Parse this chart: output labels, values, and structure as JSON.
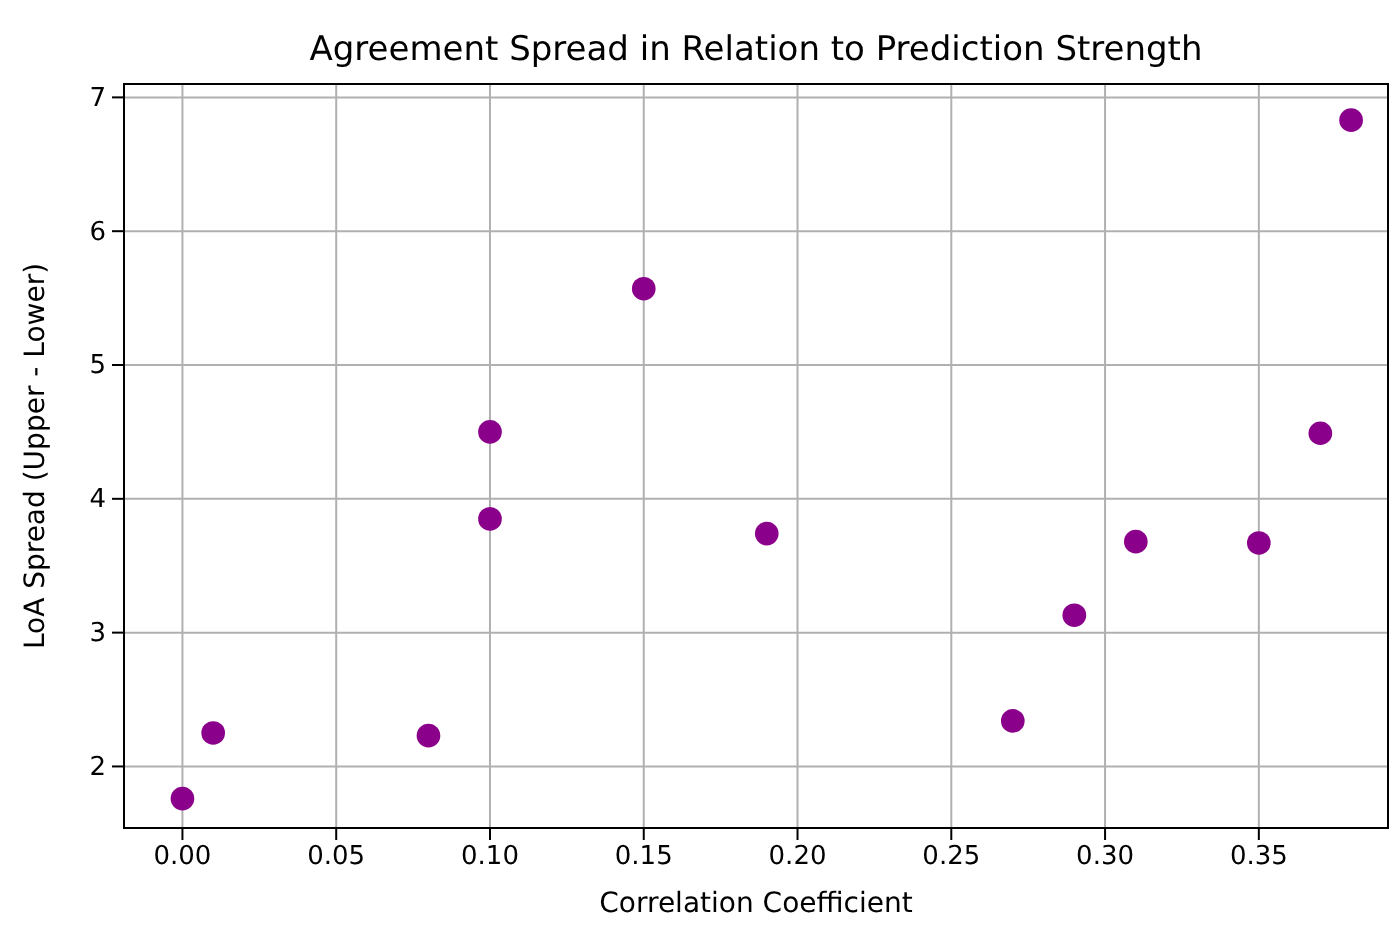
{
  "chart_data": {
    "type": "scatter",
    "title": "Agreement Spread in Relation to Prediction Strength",
    "xlabel": "Correlation Coefficient",
    "ylabel": "LoA Spread (Upper - Lower)",
    "x": [
      0.0,
      0.01,
      0.08,
      0.1,
      0.1,
      0.15,
      0.19,
      0.27,
      0.29,
      0.31,
      0.35,
      0.37,
      0.38
    ],
    "series": [
      {
        "color": "#8b008b",
        "values": [
          1.76,
          2.25,
          2.23,
          4.5,
          3.85,
          5.57,
          3.74,
          2.34,
          3.13,
          3.68,
          3.67,
          4.49,
          6.83
        ]
      }
    ],
    "xlim": [
      -0.019,
      0.392
    ],
    "ylim": [
      1.54,
      7.1
    ],
    "xticks": [
      {
        "value": 0,
        "label": "0.00"
      },
      {
        "value": 0.05,
        "label": "0.05"
      },
      {
        "value": 0.1,
        "label": "0.10"
      },
      {
        "value": 0.15,
        "label": "0.15"
      },
      {
        "value": 0.2,
        "label": "0.20"
      },
      {
        "value": 0.25,
        "label": "0.25"
      },
      {
        "value": 0.3,
        "label": "0.30"
      },
      {
        "value": 0.35,
        "label": "0.35"
      }
    ],
    "yticks": [
      2,
      3,
      4,
      5,
      6,
      7
    ],
    "grid": true,
    "marker": "circle"
  }
}
